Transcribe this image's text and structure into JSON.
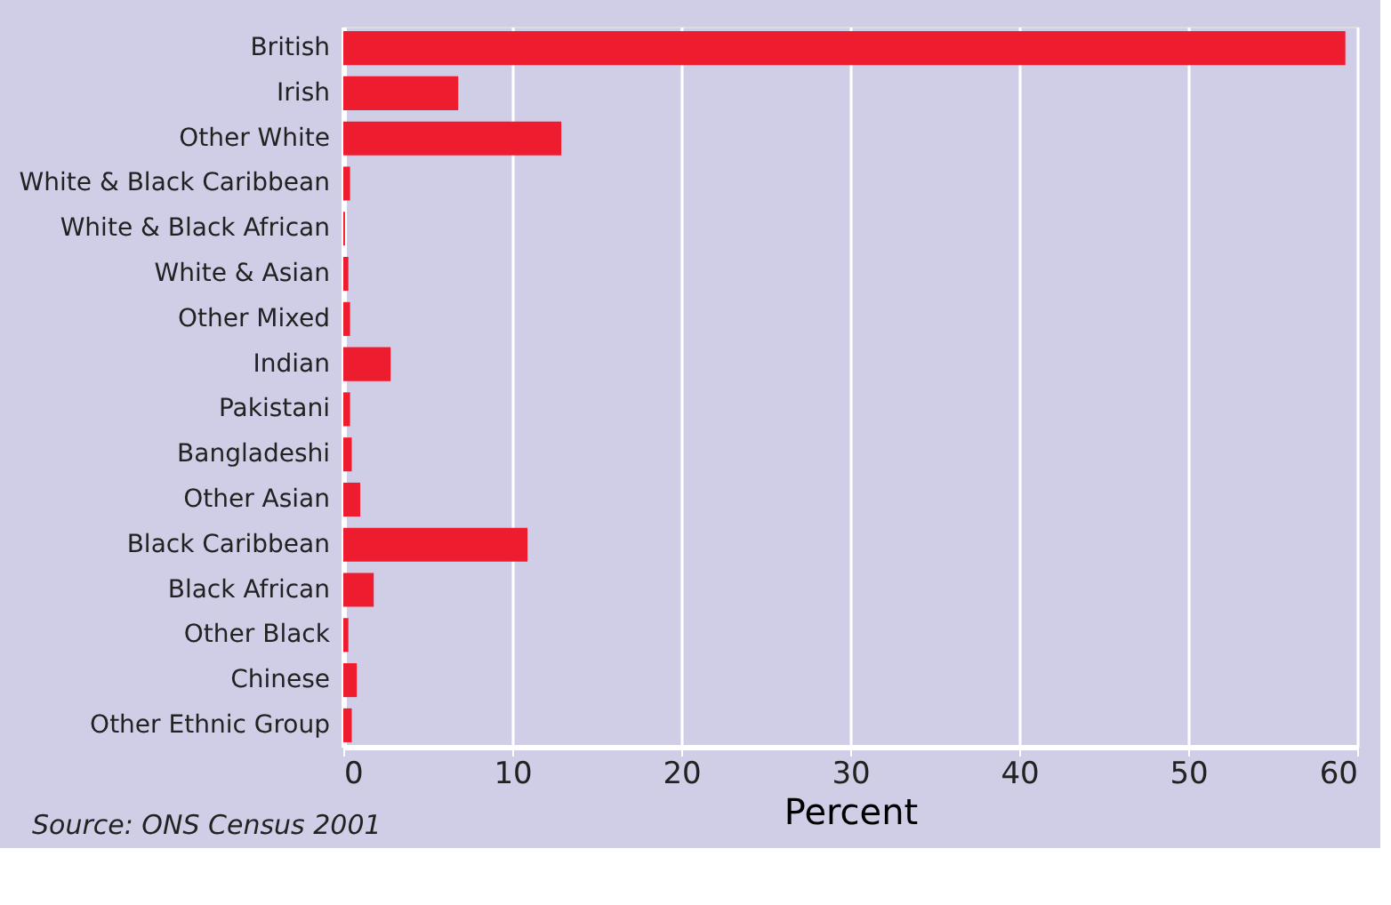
{
  "chart_data": {
    "type": "bar",
    "orientation": "horizontal",
    "xlabel": "Percent",
    "categories": [
      "British",
      "Irish",
      "Other White",
      "White & Black Caribbean",
      "White & Black African",
      "White & Asian",
      "Other Mixed",
      "Indian",
      "Pakistani",
      "Bangladeshi",
      "Other Asian",
      "Black Caribbean",
      "Black African",
      "Other Black",
      "Chinese",
      "Other Ethnic Group"
    ],
    "values": [
      59.3,
      6.8,
      12.9,
      0.4,
      0.1,
      0.3,
      0.4,
      2.8,
      0.4,
      0.5,
      1.0,
      10.9,
      1.8,
      0.3,
      0.8,
      0.5
    ],
    "color": "#ee1c2f",
    "xlim": [
      0,
      60
    ],
    "xticks": [
      0,
      10,
      20,
      30,
      40,
      50,
      60
    ],
    "grid": "x",
    "annotations": [
      "Source: ONS Census 2001"
    ]
  }
}
